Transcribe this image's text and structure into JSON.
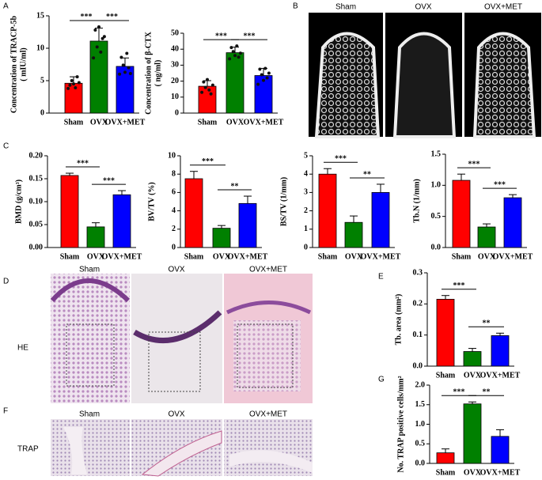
{
  "panels": [
    "A",
    "B",
    "C",
    "D",
    "E",
    "F",
    "G"
  ],
  "images": {
    "B": [
      "Sham",
      "OVX",
      "OVX+MET"
    ],
    "D": {
      "row_label": "HE",
      "columns": [
        "Sham",
        "OVX",
        "OVX+MET"
      ]
    },
    "F": {
      "row_label": "TRAP",
      "columns": [
        "Sham",
        "OVX",
        "OVX+MET"
      ]
    }
  },
  "chart_data": [
    {
      "type": "bar",
      "ylabel": [
        "Concentration of TRACP-5b",
        "( mIU/ml)"
      ],
      "categories": [
        "Sham",
        "OVX",
        "OVX+MET"
      ],
      "values": [
        4.6,
        11.1,
        7.2
      ],
      "errors": [
        1.0,
        2.0,
        1.3
      ],
      "colors": [
        "#ff0000",
        "#008000",
        "#0000ff"
      ],
      "points": [
        [
          3.8,
          4.3,
          5.0,
          4.5,
          3.9,
          5.6,
          4.7
        ],
        [
          8.5,
          12.8,
          10.2,
          13.3,
          9.4,
          11.5,
          11.8
        ],
        [
          6.0,
          8.6,
          7.4,
          6.3,
          9.2,
          7.0,
          6.1
        ]
      ],
      "ylim": [
        0,
        15
      ],
      "yticks": [
        0,
        5,
        10,
        15
      ],
      "annotations": [
        "***",
        "***"
      ]
    },
    {
      "type": "bar",
      "ylabel": [
        "Concentration of β-CTX",
        "( ng/ml)"
      ],
      "categories": [
        "Sham",
        "OVX",
        "OVX+MET"
      ],
      "values": [
        16.8,
        37.8,
        23.5
      ],
      "errors": [
        3.5,
        3.5,
        4.5
      ],
      "colors": [
        "#ff0000",
        "#008000",
        "#0000ff"
      ],
      "points": [
        [
          13.0,
          19.5,
          16.0,
          21.0,
          14.5,
          12.0,
          17.5
        ],
        [
          34.0,
          41.0,
          38.5,
          36.0,
          42.0,
          35.0,
          37.5
        ],
        [
          18.0,
          27.5,
          24.0,
          20.5,
          28.0,
          22.0,
          25.0
        ]
      ],
      "ylim": [
        0,
        50
      ],
      "yticks": [
        0,
        10,
        20,
        30,
        40,
        50
      ],
      "annotations": [
        "***",
        "***"
      ]
    },
    {
      "type": "bar",
      "ylabel": "BMD (g/cm³)",
      "categories": [
        "Sham",
        "OVX",
        "OVX+MET"
      ],
      "values": [
        0.157,
        0.045,
        0.115
      ],
      "errors": [
        0.005,
        0.009,
        0.009
      ],
      "colors": [
        "#ff0000",
        "#008000",
        "#0000ff"
      ],
      "ylim": [
        0,
        0.2
      ],
      "yticks": [
        {
          "value": 0,
          "label": "0.00"
        },
        0.05,
        {
          "value": 0.1,
          "label": "0.10"
        },
        0.15,
        {
          "value": 0.2,
          "label": "0.20"
        }
      ],
      "annotations": [
        "***",
        "***"
      ]
    },
    {
      "type": "bar",
      "ylabel": "BV/TV (%)",
      "categories": [
        "Sham",
        "OVX",
        "OVX+MET"
      ],
      "values": [
        7.5,
        2.1,
        4.8
      ],
      "errors": [
        0.8,
        0.3,
        0.8
      ],
      "colors": [
        "#ff0000",
        "#008000",
        "#0000ff"
      ],
      "ylim": [
        0,
        10
      ],
      "yticks": [
        0,
        2,
        4,
        6,
        8,
        10
      ],
      "annotations": [
        "***",
        "**"
      ]
    },
    {
      "type": "bar",
      "ylabel": "BS/TV (1/mm)",
      "categories": [
        "Sham",
        "OVX",
        "OVX+MET"
      ],
      "values": [
        4.0,
        1.37,
        3.0
      ],
      "errors": [
        0.3,
        0.35,
        0.45
      ],
      "colors": [
        "#ff0000",
        "#008000",
        "#0000ff"
      ],
      "ylim": [
        0,
        5
      ],
      "yticks": [
        0,
        1,
        2,
        3,
        4,
        5
      ],
      "annotations": [
        "***",
        "**"
      ]
    },
    {
      "type": "bar",
      "ylabel": "Tb.N (1/mm)",
      "categories": [
        "Sham",
        "OVX",
        "OVX+MET"
      ],
      "values": [
        1.08,
        0.33,
        0.8
      ],
      "errors": [
        0.1,
        0.05,
        0.05
      ],
      "colors": [
        "#ff0000",
        "#008000",
        "#0000ff"
      ],
      "ylim": [
        0,
        1.5
      ],
      "yticks": [
        {
          "value": 0,
          "label": "0.0"
        },
        0.5,
        {
          "value": 1,
          "label": "1.0"
        },
        1.5
      ],
      "annotations": [
        "***",
        "***"
      ]
    },
    {
      "type": "bar",
      "ylabel": "Tb. area (mm²)",
      "categories": [
        "Sham",
        "OVX",
        "OVX+MET"
      ],
      "values": [
        0.215,
        0.047,
        0.098
      ],
      "errors": [
        0.012,
        0.01,
        0.008
      ],
      "colors": [
        "#ff0000",
        "#008000",
        "#0000ff"
      ],
      "ylim": [
        0,
        0.3
      ],
      "yticks": [
        {
          "value": 0,
          "label": "0.0"
        },
        0.1,
        0.2,
        0.3
      ],
      "annotations": [
        "***",
        "**"
      ]
    },
    {
      "type": "bar",
      "ylabel": "No. TRAP positive cells/mm²",
      "categories": [
        "Sham",
        "OVX",
        "OVX+MET"
      ],
      "values": [
        0.27,
        1.52,
        0.69
      ],
      "errors": [
        0.1,
        0.05,
        0.17
      ],
      "colors": [
        "#ff0000",
        "#008000",
        "#0000ff"
      ],
      "ylim": [
        0,
        2.0
      ],
      "yticks": [
        {
          "value": 0,
          "label": "0.0"
        },
        0.5,
        {
          "value": 1,
          "label": "1.0"
        },
        1.5,
        {
          "value": 2,
          "label": "2.0"
        }
      ],
      "annotations": [
        "***",
        "**"
      ]
    }
  ]
}
